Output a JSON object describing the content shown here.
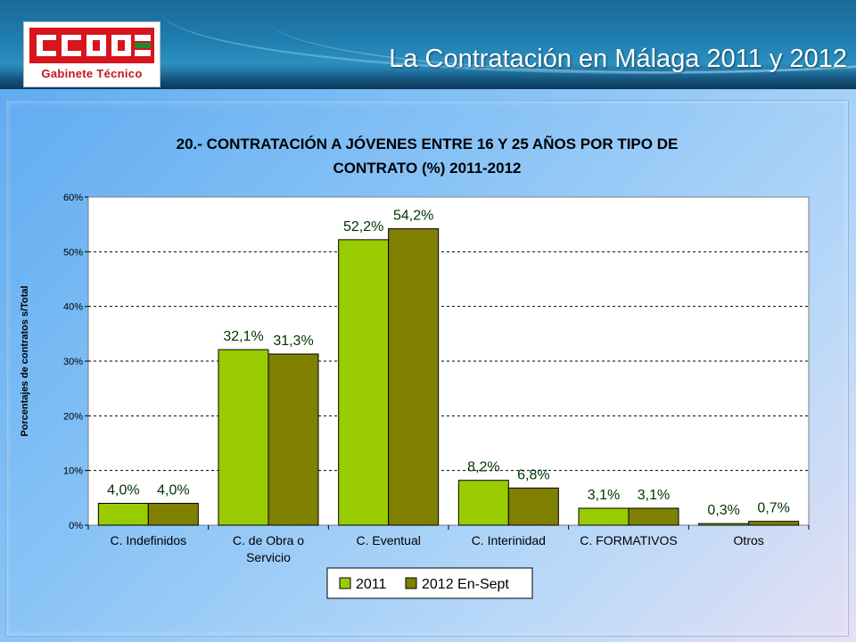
{
  "header": {
    "logo_text": "CCOO",
    "logo_subtitle": "Gabinete   Técnico",
    "page_title": "La Contratación en Málaga 2011 y 2012"
  },
  "colors": {
    "series_2011": "#99cc00",
    "series_2012": "#808000",
    "logo_red": "#d8141c",
    "title_color": "#000000",
    "label_color": "#003300"
  },
  "chart_data": {
    "type": "bar",
    "title_lines": [
      "20.- CONTRATACIÓN A JÓVENES ENTRE 16 Y 25 AÑOS POR TIPO DE",
      "CONTRATO (%) 2011-2012"
    ],
    "ylabel": "Porcentajes de contratos s/Total",
    "xlabel": "",
    "ylim": [
      0,
      60
    ],
    "yticks": [
      "0%",
      "10%",
      "20%",
      "30%",
      "40%",
      "50%",
      "60%"
    ],
    "grid": true,
    "legend_position": "bottom-center",
    "categories": [
      [
        "C. Indefinidos"
      ],
      [
        "C. de Obra o",
        "Servicio"
      ],
      [
        "C. Eventual"
      ],
      [
        "C. Interinidad"
      ],
      [
        "C. FORMATIVOS"
      ],
      [
        "Otros"
      ]
    ],
    "series": [
      {
        "name": "2011",
        "values": [
          4.0,
          32.1,
          52.2,
          8.2,
          3.1,
          0.3
        ],
        "labels": [
          "4,0%",
          "32,1%",
          "52,2%",
          "8,2%",
          "3,1%",
          "0,3%"
        ]
      },
      {
        "name": "2012 En-Sept",
        "values": [
          4.0,
          31.3,
          54.2,
          6.8,
          3.1,
          0.7
        ],
        "labels": [
          "4,0%",
          "31,3%",
          "54,2%",
          "6,8%",
          "3,1%",
          "0,7%"
        ]
      }
    ]
  }
}
